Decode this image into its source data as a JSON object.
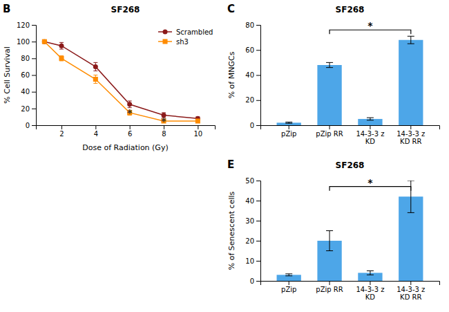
{
  "chart_data": [
    {
      "type": "line",
      "title": "SF268",
      "xlabel": "Dose of Radiation (Gy)",
      "ylabel": "% Cell Survival",
      "x": [
        1,
        2,
        4,
        6,
        8,
        10
      ],
      "series": [
        {
          "name": "Scrambled",
          "color": "#8B1A1A",
          "marker": "circle",
          "values": [
            100,
            95,
            70,
            25,
            12,
            8
          ],
          "errors": [
            2,
            4,
            5,
            4,
            3,
            2
          ]
        },
        {
          "name": "sh3",
          "color": "#FF8C00",
          "marker": "square",
          "values": [
            100,
            80,
            55,
            15,
            5,
            5
          ],
          "errors": [
            2,
            3,
            5,
            3,
            2,
            1
          ]
        }
      ],
      "xlim": [
        0.5,
        11
      ],
      "xticks": [
        2,
        4,
        6,
        8,
        10
      ],
      "ylim": [
        0,
        120
      ],
      "yticks": [
        0,
        20,
        40,
        60,
        80,
        100,
        120
      ],
      "legend": "upper right",
      "grid": false,
      "annotations": [
        {
          "text": "B"
        },
        {
          "text": "*",
          "x": 6,
          "y": 18
        },
        {
          "text": "*",
          "x": 8,
          "y": 8
        }
      ]
    },
    {
      "type": "bar",
      "title": "SF268",
      "ylabel": "% of MNGCs",
      "categories": [
        "pZip",
        "pZip RR",
        "14-3-3 z\nKD",
        "14-3-3 z\nKD RR"
      ],
      "values": [
        2,
        48,
        5,
        68
      ],
      "errors": [
        0.5,
        2,
        1,
        3
      ],
      "color": "#4da6e8",
      "ylim": [
        0,
        80
      ],
      "yticks": [
        0,
        20,
        40,
        60,
        80
      ],
      "grid": false,
      "brackets": [
        {
          "from": "pZip RR",
          "to": "14-3-3 z\nKD RR",
          "y": 76,
          "label": "*"
        }
      ],
      "annotations": [
        {
          "text": "C"
        }
      ]
    },
    {
      "type": "bar",
      "title": "SF268",
      "ylabel": "% of Senescent cells",
      "categories": [
        "pZip",
        "pZip RR",
        "14-3-3 z\nKD",
        "14-3-3 z\nKD RR"
      ],
      "values": [
        3,
        20,
        4,
        42
      ],
      "errors": [
        0.5,
        5,
        1,
        8
      ],
      "color": "#4da6e8",
      "ylim": [
        0,
        50
      ],
      "yticks": [
        0,
        10,
        20,
        30,
        40,
        50
      ],
      "grid": false,
      "brackets": [
        {
          "from": "pZip RR",
          "to": "14-3-3 z\nKD RR",
          "y": 47,
          "label": "*"
        }
      ],
      "annotations": [
        {
          "text": "E"
        }
      ]
    }
  ]
}
